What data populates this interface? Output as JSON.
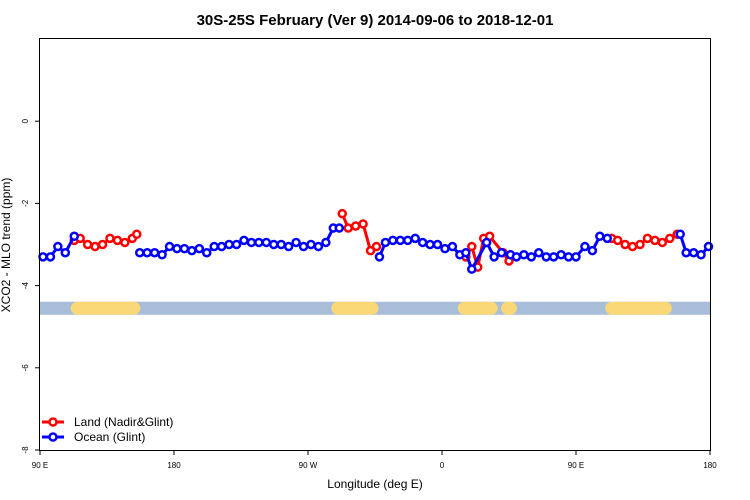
{
  "chart_data": {
    "type": "line",
    "title": "30S-25S February (Ver 9)   2014-09-06 to 2018-12-01",
    "xlabel": "Longitude (deg E)",
    "ylabel": "XCO2 - MLO trend (ppm)",
    "xlim": [
      90,
      540
    ],
    "ylim": [
      -8,
      2
    ],
    "x_ticks": [
      {
        "value": 90,
        "label": "90 E"
      },
      {
        "value": 180,
        "label": "180"
      },
      {
        "value": 270,
        "label": "90 W"
      },
      {
        "value": 360,
        "label": "0"
      },
      {
        "value": 450,
        "label": "90 E"
      },
      {
        "value": 540,
        "label": "180"
      }
    ],
    "y_ticks": [
      {
        "value": 0,
        "label": "0"
      },
      {
        "value": -2,
        "label": "-2"
      },
      {
        "value": -4,
        "label": "-4"
      },
      {
        "value": -6,
        "label": "-6"
      },
      {
        "value": -8,
        "label": "-8"
      }
    ],
    "grid": false,
    "legend_position": "bottom-left",
    "band": {
      "y": -4.55,
      "ocean_color": "#a8bdd8",
      "land_color": "#fad878",
      "land_segments": [
        [
          115,
          153
        ],
        [
          290,
          313
        ],
        [
          375,
          393
        ],
        [
          404,
          406
        ],
        [
          474,
          510
        ]
      ]
    },
    "series": [
      {
        "name": "Land (Nadir&Glint)",
        "color": "#ff0000",
        "x": [
          113,
          117,
          122,
          127,
          132,
          137,
          142,
          147,
          152,
          155,
          293,
          297,
          302,
          307,
          312,
          316,
          376,
          380,
          384,
          388,
          392,
          401,
          405,
          474,
          478,
          483,
          488,
          493,
          498,
          503,
          508,
          513,
          518
        ],
        "y": [
          -2.9,
          -2.85,
          -3.0,
          -3.05,
          -3.0,
          -2.85,
          -2.9,
          -2.95,
          -2.85,
          -2.75,
          -2.25,
          -2.6,
          -2.55,
          -2.5,
          -3.15,
          -3.05,
          -3.3,
          -3.05,
          -3.55,
          -2.85,
          -2.8,
          -3.2,
          -3.4,
          -2.85,
          -2.9,
          -3.0,
          -3.05,
          -3.0,
          -2.85,
          -2.9,
          -2.95,
          -2.85,
          -2.75
        ]
      },
      {
        "name": "Ocean (Glint)",
        "color": "#0000ff",
        "x": [
          92,
          97,
          102,
          107,
          113,
          157,
          162,
          167,
          172,
          177,
          182,
          187,
          192,
          197,
          202,
          207,
          212,
          217,
          222,
          227,
          232,
          237,
          242,
          247,
          252,
          257,
          262,
          267,
          272,
          277,
          282,
          287,
          291,
          318,
          322,
          327,
          332,
          337,
          342,
          347,
          352,
          357,
          362,
          367,
          372,
          376,
          380,
          390,
          395,
          400,
          406,
          410,
          415,
          420,
          425,
          430,
          435,
          440,
          445,
          450,
          456,
          461,
          466,
          471,
          520,
          524,
          529,
          534,
          539
        ],
        "y": [
          -3.3,
          -3.3,
          -3.05,
          -3.2,
          -2.8,
          -3.2,
          -3.2,
          -3.2,
          -3.25,
          -3.05,
          -3.1,
          -3.1,
          -3.15,
          -3.1,
          -3.2,
          -3.05,
          -3.05,
          -3.0,
          -3.0,
          -2.9,
          -2.95,
          -2.95,
          -2.95,
          -3.0,
          -3.0,
          -3.05,
          -2.95,
          -3.05,
          -3.0,
          -3.05,
          -2.95,
          -2.6,
          -2.6,
          -3.3,
          -2.95,
          -2.9,
          -2.9,
          -2.9,
          -2.85,
          -2.95,
          -3.0,
          -3.0,
          -3.1,
          -3.05,
          -3.25,
          -3.2,
          -3.6,
          -2.95,
          -3.3,
          -3.2,
          -3.25,
          -3.3,
          -3.25,
          -3.3,
          -3.2,
          -3.3,
          -3.3,
          -3.25,
          -3.3,
          -3.3,
          -3.05,
          -3.15,
          -2.8,
          -2.85,
          -2.75,
          -3.2,
          -3.2,
          -3.25,
          -3.05
        ]
      }
    ]
  }
}
